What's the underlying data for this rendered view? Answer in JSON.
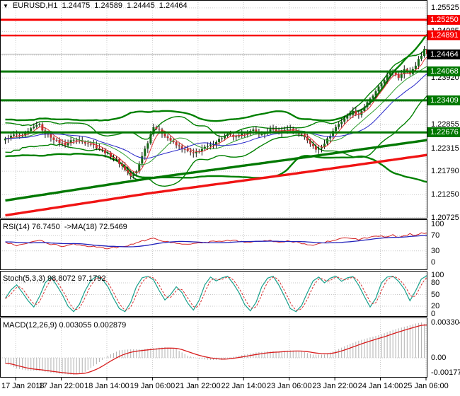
{
  "header": {
    "symbol": "EURUSD,H1",
    "open": "1.24475",
    "high": "1.24589",
    "low": "1.24445",
    "close": "1.24464",
    "marker_icon_glyph": "▼"
  },
  "panels": {
    "rsi_label": "RSI(14) 76.7450  ->MA(18) 72.5469",
    "stoch_label": "Stoch(5,3,3) 98.8072 97.1792",
    "macd_label": "MACD(12,26,9) 0.003055 0.002879"
  },
  "colors": {
    "resistance": "#f80000",
    "support": "#007800",
    "bull": "#156615",
    "bear": "#c03030",
    "wick": "#111111",
    "ma_fast_red": "#e03232",
    "ma_mid_blue": "#2626c8",
    "ma_slow_green": "#2f9e2f",
    "band_green": "#008000",
    "trend_green": "#007800",
    "trend_red": "#f01414",
    "rsi_line": "#d42424",
    "rsi_ma": "#2222bb",
    "stoch_k": "#18a08c",
    "stoch_d": "#d83030",
    "macd_hist": "#b0b0b0",
    "macd_signal": "#d81c1c",
    "grid": "#c9c9c9",
    "current_line": "#ababab",
    "current_box_bg": "#000000",
    "panel_border": "#000000"
  },
  "chart_data": {
    "type": "candlestick+indicators",
    "symbol": "EURUSD",
    "timeframe": "H1",
    "quote": {
      "open": 1.24475,
      "high": 1.24589,
      "low": 1.24445,
      "close": 1.24464
    },
    "price_axis": {
      "y_top_price": 1.25703,
      "y_bottom_price": 1.20708,
      "visible_ticks": [
        [
          1.25525,
          "1.25525"
        ],
        [
          1.24985,
          "1.24985"
        ],
        [
          1.2392,
          "1.23920"
        ],
        [
          1.22855,
          "1.22855"
        ],
        [
          1.22315,
          "1.22315"
        ],
        [
          1.2179,
          "1.21790"
        ],
        [
          1.2125,
          "1.21250"
        ],
        [
          1.20725,
          "1.20725"
        ]
      ],
      "grid_prices": [
        1.25525,
        1.24985,
        1.24445,
        1.2392,
        1.23385,
        1.22855,
        1.22315,
        1.2179,
        1.2125,
        1.20725
      ]
    },
    "levels": {
      "resistance": [
        {
          "price": 1.2525,
          "label": "1.25250"
        },
        {
          "price": 1.24891,
          "label": "1.24891"
        }
      ],
      "support": [
        {
          "price": 1.24068,
          "label": "1.24068"
        },
        {
          "price": 1.23409,
          "label": "1.23409"
        },
        {
          "price": 1.22676,
          "label": "1.22676"
        }
      ],
      "current": {
        "price": 1.24464,
        "label": "1.24464"
      }
    },
    "time_labels": [
      "17 Jan 2018",
      "17 Jan 22:00",
      "18 Jan 14:00",
      "19 Jan 06:00",
      "21 Jan 22:00",
      "22 Jan 14:00",
      "23 Jan 06:00",
      "23 Jan 22:00",
      "24 Jan 14:00",
      "25 Jan 06:00"
    ],
    "bars": {
      "count": 149,
      "close_noise_amp": 0.0005,
      "wick_base": 0.0003,
      "wick_var": 0.0007,
      "close_anchors": [
        [
          0,
          1.2252
        ],
        [
          3,
          1.2262
        ],
        [
          6,
          1.2258
        ],
        [
          9,
          1.2275
        ],
        [
          12,
          1.2288
        ],
        [
          13,
          1.227
        ],
        [
          15,
          1.2262
        ],
        [
          18,
          1.2248
        ],
        [
          21,
          1.224
        ],
        [
          24,
          1.2252
        ],
        [
          27,
          1.2246
        ],
        [
          30,
          1.2242
        ],
        [
          33,
          1.223
        ],
        [
          36,
          1.2218
        ],
        [
          39,
          1.2205
        ],
        [
          42,
          1.2183
        ],
        [
          44,
          1.2168
        ],
        [
          46,
          1.2178
        ],
        [
          48,
          1.2215
        ],
        [
          50,
          1.2245
        ],
        [
          52,
          1.2282
        ],
        [
          54,
          1.2272
        ],
        [
          57,
          1.2255
        ],
        [
          60,
          1.2238
        ],
        [
          63,
          1.2228
        ],
        [
          66,
          1.2218
        ],
        [
          69,
          1.223
        ],
        [
          72,
          1.2238
        ],
        [
          75,
          1.2252
        ],
        [
          78,
          1.2262
        ],
        [
          81,
          1.2256
        ],
        [
          84,
          1.2266
        ],
        [
          87,
          1.2272
        ],
        [
          90,
          1.2262
        ],
        [
          93,
          1.2274
        ],
        [
          96,
          1.2268
        ],
        [
          99,
          1.2276
        ],
        [
          102,
          1.227
        ],
        [
          105,
          1.2258
        ],
        [
          107,
          1.2242
        ],
        [
          109,
          1.2228
        ],
        [
          111,
          1.2236
        ],
        [
          113,
          1.2252
        ],
        [
          116,
          1.228
        ],
        [
          119,
          1.23
        ],
        [
          122,
          1.2315
        ],
        [
          124,
          1.2308
        ],
        [
          127,
          1.2335
        ],
        [
          130,
          1.236
        ],
        [
          132,
          1.238
        ],
        [
          134,
          1.2398
        ],
        [
          136,
          1.2408
        ],
        [
          138,
          1.2394
        ],
        [
          140,
          1.2412
        ],
        [
          142,
          1.2402
        ],
        [
          144,
          1.2422
        ],
        [
          146,
          1.2445
        ],
        [
          147,
          1.2458
        ],
        [
          148,
          1.24464
        ]
      ]
    },
    "overlays": {
      "trend_ma_green": [
        [
          0,
          1.2112
        ],
        [
          50,
          1.2162
        ],
        [
          100,
          1.2206
        ],
        [
          148,
          1.225
        ]
      ],
      "trend_ma_red": [
        [
          0,
          1.2078
        ],
        [
          50,
          1.2128
        ],
        [
          100,
          1.2172
        ],
        [
          148,
          1.2216
        ]
      ],
      "bollinger_sets": [
        {
          "period": 20,
          "dev": 2.0,
          "width": 1.4
        },
        {
          "period": 56,
          "dev": 2.5,
          "width": 2.4
        }
      ],
      "sma_overlays": [
        {
          "period": 5,
          "color_key": "ma_fast_red"
        },
        {
          "period": 13,
          "color_key": "ma_slow_green"
        },
        {
          "period": 21,
          "color_key": "ma_mid_blue"
        }
      ]
    },
    "rsi": {
      "value": 76.745,
      "ma_value": 72.5469,
      "ma_period": 18,
      "scale": [
        [
          100,
          "100"
        ],
        [
          70,
          "70"
        ],
        [
          30,
          "30"
        ],
        [
          0,
          "0"
        ]
      ],
      "level_lines": [
        70,
        30
      ],
      "anchors": [
        [
          0,
          52
        ],
        [
          4,
          45
        ],
        [
          8,
          50
        ],
        [
          12,
          57
        ],
        [
          16,
          48
        ],
        [
          20,
          42
        ],
        [
          24,
          47
        ],
        [
          28,
          44
        ],
        [
          32,
          40
        ],
        [
          36,
          37
        ],
        [
          40,
          40
        ],
        [
          44,
          46
        ],
        [
          48,
          55
        ],
        [
          52,
          62
        ],
        [
          56,
          55
        ],
        [
          60,
          50
        ],
        [
          64,
          46
        ],
        [
          68,
          50
        ],
        [
          72,
          54
        ],
        [
          76,
          55
        ],
        [
          80,
          58
        ],
        [
          84,
          53
        ],
        [
          88,
          56
        ],
        [
          92,
          58
        ],
        [
          96,
          52
        ],
        [
          100,
          56
        ],
        [
          104,
          50
        ],
        [
          108,
          43
        ],
        [
          112,
          52
        ],
        [
          116,
          60
        ],
        [
          120,
          64
        ],
        [
          124,
          60
        ],
        [
          128,
          66
        ],
        [
          132,
          70
        ],
        [
          134,
          65
        ],
        [
          136,
          72
        ],
        [
          138,
          64
        ],
        [
          140,
          70
        ],
        [
          142,
          74
        ],
        [
          144,
          70
        ],
        [
          146,
          77
        ],
        [
          148,
          76.7
        ]
      ]
    },
    "stoch": {
      "k_value": 98.8072,
      "d_value": 97.1792,
      "d_period": 3,
      "scale": [
        [
          100,
          "100"
        ],
        [
          80,
          "80"
        ],
        [
          50,
          "50"
        ],
        [
          20,
          "20"
        ],
        [
          0,
          "0"
        ]
      ],
      "level_lines": [
        80,
        50,
        20
      ],
      "anchors": [
        [
          0,
          40
        ],
        [
          2,
          62
        ],
        [
          4,
          75
        ],
        [
          6,
          55
        ],
        [
          8,
          34
        ],
        [
          10,
          18
        ],
        [
          12,
          45
        ],
        [
          14,
          80
        ],
        [
          16,
          95
        ],
        [
          18,
          74
        ],
        [
          20,
          50
        ],
        [
          22,
          20
        ],
        [
          24,
          6
        ],
        [
          26,
          25
        ],
        [
          28,
          60
        ],
        [
          30,
          86
        ],
        [
          32,
          97
        ],
        [
          34,
          90
        ],
        [
          36,
          70
        ],
        [
          38,
          40
        ],
        [
          40,
          14
        ],
        [
          42,
          6
        ],
        [
          44,
          30
        ],
        [
          46,
          70
        ],
        [
          48,
          93
        ],
        [
          50,
          97
        ],
        [
          52,
          88
        ],
        [
          54,
          60
        ],
        [
          56,
          36
        ],
        [
          58,
          50
        ],
        [
          60,
          70
        ],
        [
          62,
          55
        ],
        [
          64,
          28
        ],
        [
          66,
          10
        ],
        [
          68,
          35
        ],
        [
          70,
          75
        ],
        [
          72,
          95
        ],
        [
          74,
          85
        ],
        [
          76,
          93
        ],
        [
          78,
          97
        ],
        [
          80,
          78
        ],
        [
          82,
          55
        ],
        [
          84,
          24
        ],
        [
          86,
          8
        ],
        [
          88,
          30
        ],
        [
          90,
          70
        ],
        [
          92,
          92
        ],
        [
          94,
          97
        ],
        [
          96,
          74
        ],
        [
          98,
          45
        ],
        [
          100,
          14
        ],
        [
          102,
          6
        ],
        [
          104,
          22
        ],
        [
          106,
          55
        ],
        [
          108,
          85
        ],
        [
          110,
          95
        ],
        [
          112,
          80
        ],
        [
          114,
          92
        ],
        [
          116,
          97
        ],
        [
          118,
          84
        ],
        [
          120,
          93
        ],
        [
          122,
          96
        ],
        [
          124,
          74
        ],
        [
          126,
          45
        ],
        [
          128,
          18
        ],
        [
          130,
          40
        ],
        [
          132,
          80
        ],
        [
          134,
          95
        ],
        [
          136,
          97
        ],
        [
          138,
          84
        ],
        [
          140,
          64
        ],
        [
          142,
          34
        ],
        [
          144,
          60
        ],
        [
          146,
          90
        ],
        [
          148,
          98.8
        ]
      ]
    },
    "macd": {
      "main_value": 0.003055,
      "signal_value": 0.002879,
      "signal_period": 9,
      "scale": [
        [
          0.003304,
          "0.003304"
        ],
        [
          0,
          "0.00"
        ],
        [
          -0.001778,
          "-0.001778"
        ]
      ],
      "anchors": [
        [
          0,
          -0.0005
        ],
        [
          4,
          -0.001
        ],
        [
          8,
          -0.0012
        ],
        [
          12,
          -0.0012
        ],
        [
          16,
          -0.0014
        ],
        [
          20,
          -0.0015
        ],
        [
          24,
          -0.0016
        ],
        [
          28,
          -0.0013
        ],
        [
          32,
          -0.0006
        ],
        [
          36,
          0.0002
        ],
        [
          40,
          0.0007
        ],
        [
          44,
          0.0008
        ],
        [
          48,
          0.0008
        ],
        [
          52,
          0.0009
        ],
        [
          56,
          0.001
        ],
        [
          60,
          0.0008
        ],
        [
          64,
          0.0002
        ],
        [
          68,
          -0.0001
        ],
        [
          72,
          -0.0002
        ],
        [
          76,
          -0.0002
        ],
        [
          80,
          0.0001
        ],
        [
          84,
          0.0003
        ],
        [
          88,
          0.0005
        ],
        [
          92,
          0.0006
        ],
        [
          96,
          0.0006
        ],
        [
          100,
          0.0007
        ],
        [
          104,
          0.0006
        ],
        [
          108,
          0.0003
        ],
        [
          112,
          0.0003
        ],
        [
          116,
          0.0007
        ],
        [
          120,
          0.0012
        ],
        [
          124,
          0.0016
        ],
        [
          128,
          0.0019
        ],
        [
          132,
          0.0022
        ],
        [
          136,
          0.0026
        ],
        [
          140,
          0.0029
        ],
        [
          144,
          0.0032
        ],
        [
          146,
          0.0033
        ],
        [
          148,
          0.003055
        ]
      ]
    }
  }
}
